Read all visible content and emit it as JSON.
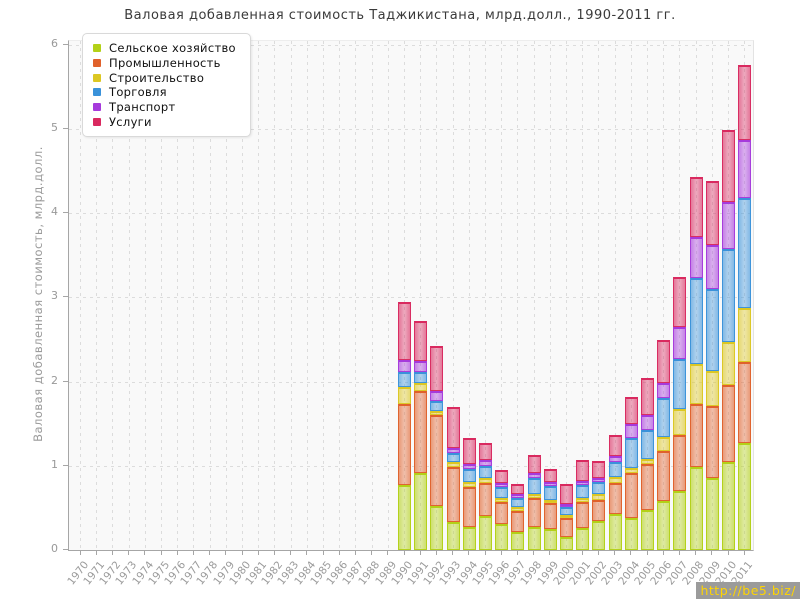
{
  "page": {
    "watermark": "http://be5.biz/"
  },
  "chart_data": {
    "type": "bar",
    "stacked": true,
    "title": "Валовая добавленная стоимость Таджикистана, млрд.долл., 1990-2011 гг.",
    "ylabel": "Валовая добавленная стоимость, млрд.долл.",
    "ylim": [
      0,
      6
    ],
    "yticks": [
      0,
      1,
      2,
      3,
      4,
      5,
      6
    ],
    "grid": "dashed",
    "legend_position": "top-left",
    "categories": [
      "1970",
      "1971",
      "1972",
      "1973",
      "1974",
      "1975",
      "1976",
      "1977",
      "1978",
      "1979",
      "1980",
      "1981",
      "1982",
      "1983",
      "1984",
      "1985",
      "1986",
      "1987",
      "1988",
      "1989",
      "1990",
      "1991",
      "1992",
      "1993",
      "1994",
      "1995",
      "1996",
      "1997",
      "1998",
      "1999",
      "2000",
      "2001",
      "2002",
      "2003",
      "2004",
      "2005",
      "2006",
      "2007",
      "2008",
      "2009",
      "2010",
      "2011"
    ],
    "series": [
      {
        "name": "Сельское хозяйство",
        "color": "#b3d118",
        "values": [
          null,
          null,
          null,
          null,
          null,
          null,
          null,
          null,
          null,
          null,
          null,
          null,
          null,
          null,
          null,
          null,
          null,
          null,
          null,
          null,
          0.77,
          0.91,
          0.52,
          0.33,
          0.27,
          0.4,
          0.31,
          0.21,
          0.27,
          0.25,
          0.15,
          0.26,
          0.34,
          0.43,
          0.38,
          0.48,
          0.58,
          0.7,
          0.99,
          0.86,
          1.05,
          1.27
        ]
      },
      {
        "name": "Промышленность",
        "color": "#e0612b",
        "values": [
          null,
          null,
          null,
          null,
          null,
          null,
          null,
          null,
          null,
          null,
          null,
          null,
          null,
          null,
          null,
          null,
          null,
          null,
          null,
          null,
          0.96,
          0.98,
          1.08,
          0.66,
          0.48,
          0.4,
          0.26,
          0.25,
          0.35,
          0.31,
          0.23,
          0.31,
          0.26,
          0.37,
          0.54,
          0.54,
          0.6,
          0.67,
          0.74,
          0.85,
          0.91,
          0.96
        ]
      },
      {
        "name": "Строительство",
        "color": "#dcc723",
        "values": [
          null,
          null,
          null,
          null,
          null,
          null,
          null,
          null,
          null,
          null,
          null,
          null,
          null,
          null,
          null,
          null,
          null,
          null,
          null,
          null,
          0.21,
          0.09,
          0.05,
          0.05,
          0.06,
          0.06,
          0.05,
          0.05,
          0.05,
          0.04,
          0.04,
          0.05,
          0.06,
          0.07,
          0.05,
          0.06,
          0.16,
          0.31,
          0.48,
          0.42,
          0.51,
          0.65
        ]
      },
      {
        "name": "Торговля",
        "color": "#3a92da",
        "values": [
          null,
          null,
          null,
          null,
          null,
          null,
          null,
          null,
          null,
          null,
          null,
          null,
          null,
          null,
          null,
          null,
          null,
          null,
          null,
          null,
          0.17,
          0.13,
          0.12,
          0.11,
          0.15,
          0.14,
          0.13,
          0.11,
          0.19,
          0.16,
          0.09,
          0.15,
          0.15,
          0.17,
          0.36,
          0.35,
          0.47,
          0.59,
          1.02,
          0.97,
          1.11,
          1.3
        ]
      },
      {
        "name": "Транспорт",
        "color": "#a63adc",
        "values": [
          null,
          null,
          null,
          null,
          null,
          null,
          null,
          null,
          null,
          null,
          null,
          null,
          null,
          null,
          null,
          null,
          null,
          null,
          null,
          null,
          0.15,
          0.14,
          0.12,
          0.06,
          0.06,
          0.07,
          0.05,
          0.05,
          0.05,
          0.05,
          0.04,
          0.05,
          0.05,
          0.08,
          0.17,
          0.18,
          0.17,
          0.38,
          0.49,
          0.52,
          0.55,
          0.69
        ]
      },
      {
        "name": "Услуги",
        "color": "#d9295f",
        "values": [
          null,
          null,
          null,
          null,
          null,
          null,
          null,
          null,
          null,
          null,
          null,
          null,
          null,
          null,
          null,
          null,
          null,
          null,
          null,
          null,
          0.69,
          0.47,
          0.53,
          0.49,
          0.31,
          0.2,
          0.15,
          0.11,
          0.22,
          0.15,
          0.24,
          0.25,
          0.2,
          0.25,
          0.32,
          0.43,
          0.51,
          0.59,
          0.71,
          0.76,
          0.86,
          0.89
        ]
      }
    ]
  }
}
